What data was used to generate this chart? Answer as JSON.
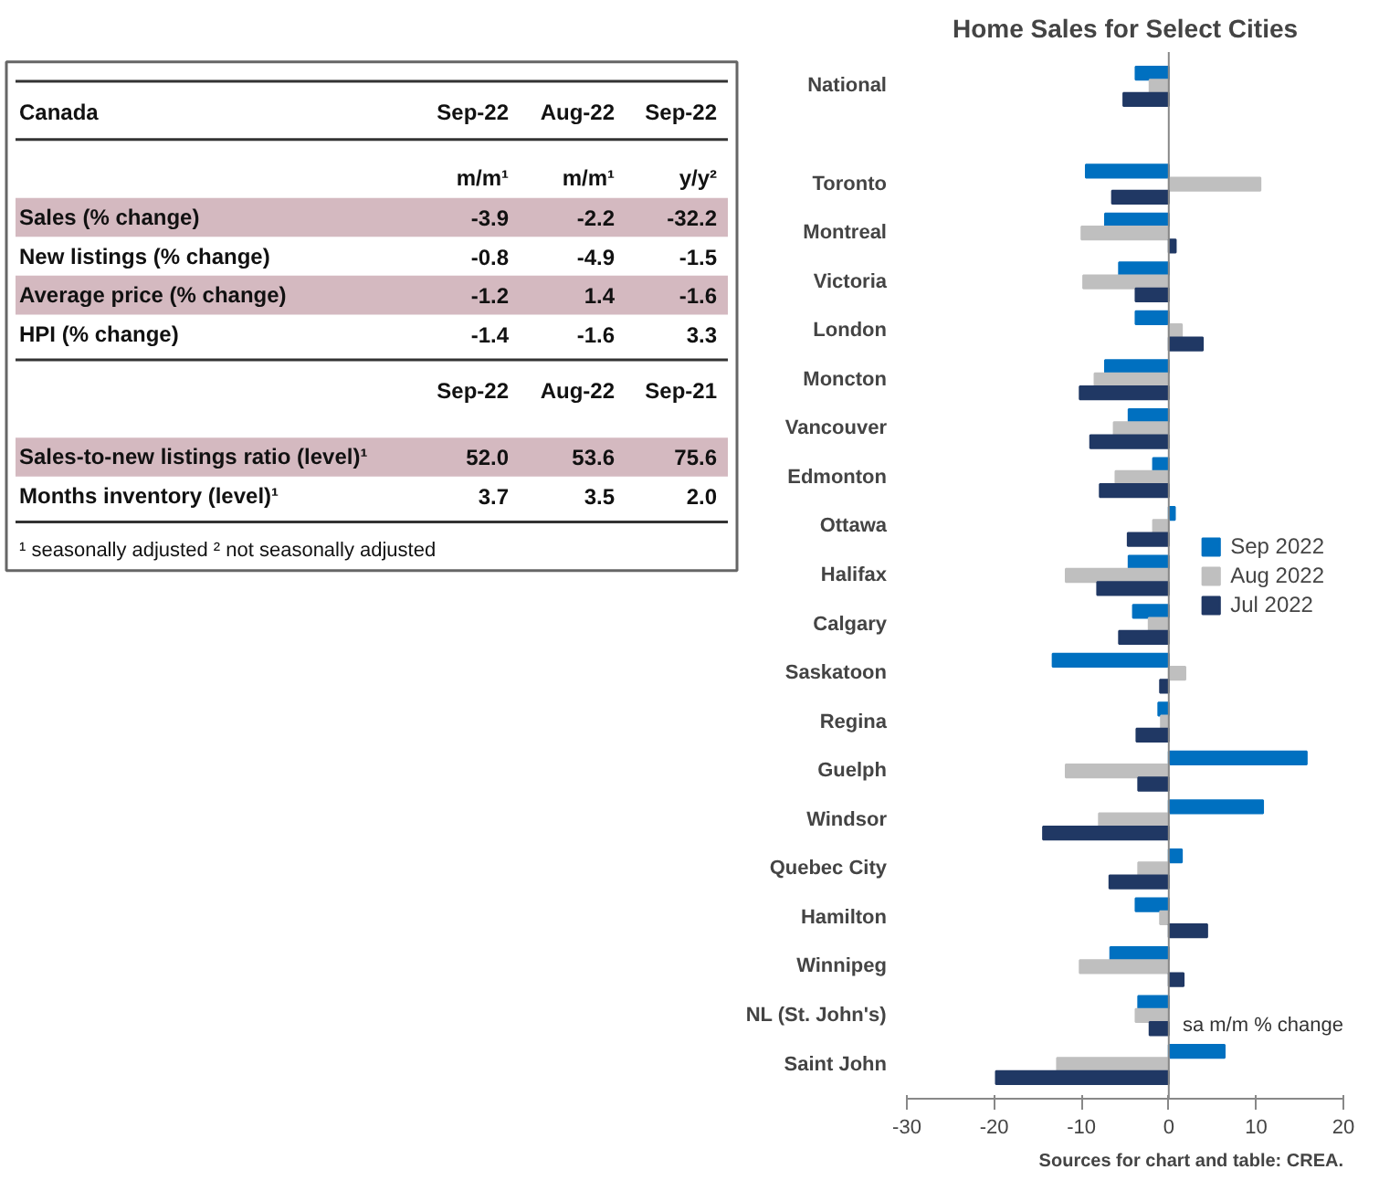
{
  "chart_data": [
    {
      "type": "other",
      "title": "Canada",
      "categories": [
        "Sep-22",
        "Aug-22",
        "Sep-22"
      ],
      "y_categories": [
        null,
        "Sales (% change)",
        "New listings (% change)",
        "Average price (% change)",
        "HPI (% change)"
      ],
      "cell_labels": [
        [
          "m/m¹",
          "m/m¹",
          "y/y²"
        ],
        [
          "-3.9",
          "-2.2",
          "-32.2"
        ],
        [
          "-0.8",
          "-4.9",
          "-1.5"
        ],
        [
          "-1.2",
          "1.4",
          "-1.6"
        ],
        [
          "-1.4",
          "-1.6",
          "3.3"
        ]
      ]
    },
    {
      "type": "other",
      "categories": [
        "Sep-22",
        "Aug-22",
        "Sep-21"
      ],
      "y_categories": [
        "Sales-to-new listings ratio (level)¹",
        "Months inventory (level)¹"
      ],
      "cell_labels": [
        [
          "52.0",
          "53.6",
          "75.6"
        ],
        [
          "3.7",
          "3.5",
          "2.0"
        ]
      ],
      "annotations": [
        "¹ seasonally adjusted ² not seasonally adjusted"
      ]
    },
    {
      "type": "bar",
      "orientation": "horizontal",
      "title": "Home Sales for Select Cities",
      "categories": [
        "National",
        null,
        "Toronto",
        "Montreal",
        "Victoria",
        "London",
        "Moncton",
        "Vancouver",
        "Edmonton",
        "Ottawa",
        "Halifax",
        "Calgary",
        "Saskatoon",
        "Regina",
        "Guelph",
        "Windsor",
        "Quebec City",
        "Hamilton",
        "Winnipeg",
        "NL (St. John's)",
        "Saint John"
      ],
      "series": [
        {
          "name": "Sep 2022",
          "color": "#0070c0",
          "values": [
            -3.8,
            null,
            -9.5,
            -7.3,
            -5.7,
            -3.8,
            -7.3,
            -4.6,
            -1.8,
            0.7,
            -4.6,
            -4.1,
            -13.3,
            -1.2,
            15.8,
            10.8,
            1.5,
            -3.8,
            -6.7,
            -3.5,
            6.4
          ]
        },
        {
          "name": "Aug 2022",
          "color": "#bfbfbf",
          "values": [
            -2.2,
            null,
            10.5,
            -10.0,
            -9.8,
            1.5,
            -8.5,
            -6.3,
            -6.1,
            -1.8,
            -11.8,
            -2.3,
            1.9,
            -0.9,
            -11.8,
            -8.0,
            -3.5,
            -1.0,
            -10.2,
            -3.8,
            -12.8
          ]
        },
        {
          "name": "Jul 2022",
          "color": "#203864",
          "values": [
            -5.2,
            null,
            -6.5,
            0.8,
            -3.8,
            3.9,
            -10.2,
            -9.0,
            -7.9,
            -4.7,
            -8.2,
            -5.7,
            -1.0,
            -3.7,
            -3.5,
            -14.4,
            -6.8,
            4.4,
            1.7,
            -2.2,
            -19.8
          ]
        }
      ],
      "xlim": [
        -30,
        20
      ],
      "xticks": [
        -30,
        -20,
        -10,
        0,
        10,
        20
      ],
      "legend": "right",
      "annotations": [
        "sa m/m % change",
        "Sources for chart and table: CREA."
      ]
    }
  ]
}
